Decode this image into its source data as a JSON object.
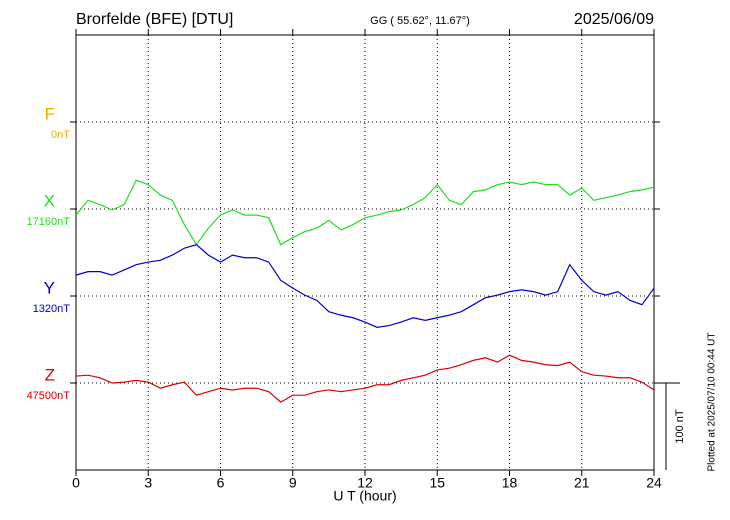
{
  "chart_data": {
    "type": "line",
    "title": "Brorfelde (BFE)  [DTU]",
    "subtitle": "GG ( 55.62°,  11.67°)",
    "date": "2025/06/09",
    "xlabel": "U T (hour)",
    "note": "Plotted at 2025/07/10 00:44 UT",
    "scale": 100,
    "scale_label": "100 nT",
    "xlim": [
      0,
      24
    ],
    "xticks": [
      0,
      3,
      6,
      9,
      12,
      15,
      18,
      21,
      24
    ],
    "grid": true,
    "x": [
      0,
      0.5,
      1,
      1.5,
      2,
      2.5,
      3,
      3.5,
      4,
      4.5,
      5,
      5.5,
      6,
      6.5,
      7,
      7.5,
      8,
      8.5,
      9,
      9.5,
      10,
      10.5,
      11,
      11.5,
      12,
      12.5,
      13,
      13.5,
      14,
      14.5,
      15,
      15.5,
      16,
      16.5,
      17,
      17.5,
      18,
      18.5,
      19,
      19.5,
      20,
      20.5,
      21,
      21.5,
      22,
      22.5,
      23,
      23.5,
      24
    ],
    "series": [
      {
        "name": "F",
        "color": "#f0b000",
        "baseline": 0,
        "baseline_label": "0nT",
        "values": [
          null,
          null,
          null,
          null,
          null,
          null,
          null,
          null,
          null,
          null,
          null,
          null,
          null,
          null,
          null,
          null,
          null,
          null,
          null,
          null,
          null,
          null,
          null,
          null,
          null,
          null,
          null,
          null,
          null,
          null,
          null,
          null,
          null,
          null,
          null,
          null,
          null,
          null,
          null,
          null,
          null,
          null,
          null,
          null,
          null,
          null,
          null,
          null,
          null
        ]
      },
      {
        "name": "X",
        "color": "#22dd22",
        "baseline": 17160,
        "baseline_label": "17160nT",
        "values": [
          17153,
          17170,
          17165,
          17159,
          17165,
          17193,
          17188,
          17176,
          17170,
          17142,
          17119,
          17138,
          17153,
          17159,
          17153,
          17153,
          17150,
          17119,
          17127,
          17134,
          17138,
          17147,
          17136,
          17142,
          17150,
          17153,
          17157,
          17159,
          17165,
          17173,
          17188,
          17170,
          17165,
          17180,
          17182,
          17188,
          17191,
          17188,
          17191,
          17188,
          17188,
          17176,
          17184,
          17170,
          17173,
          17176,
          17180,
          17182,
          17185
        ]
      },
      {
        "name": "Y",
        "color": "#0000cc",
        "baseline": 1320,
        "baseline_label": "1320nT",
        "values": [
          1344,
          1348,
          1348,
          1344,
          1350,
          1356,
          1359,
          1361,
          1367,
          1375,
          1379,
          1367,
          1359,
          1367,
          1364,
          1364,
          1359,
          1338,
          1329,
          1321,
          1315,
          1302,
          1298,
          1295,
          1290,
          1284,
          1286,
          1290,
          1295,
          1292,
          1295,
          1298,
          1302,
          1310,
          1318,
          1321,
          1325,
          1327,
          1325,
          1321,
          1325,
          1356,
          1338,
          1325,
          1321,
          1325,
          1315,
          1310,
          1329
        ]
      },
      {
        "name": "Z",
        "color": "#dd0000",
        "baseline": 47500,
        "baseline_label": "47500nT",
        "values": [
          47508,
          47509,
          47506,
          47500,
          47501,
          47503,
          47501,
          47494,
          47498,
          47501,
          47486,
          47490,
          47494,
          47492,
          47494,
          47494,
          47490,
          47478,
          47486,
          47486,
          47490,
          47492,
          47490,
          47492,
          47494,
          47498,
          47498,
          47503,
          47506,
          47509,
          47515,
          47517,
          47521,
          47526,
          47529,
          47524,
          47532,
          47526,
          47524,
          47521,
          47520,
          47524,
          47513,
          47509,
          47508,
          47506,
          47506,
          47501,
          47492
        ]
      }
    ]
  }
}
